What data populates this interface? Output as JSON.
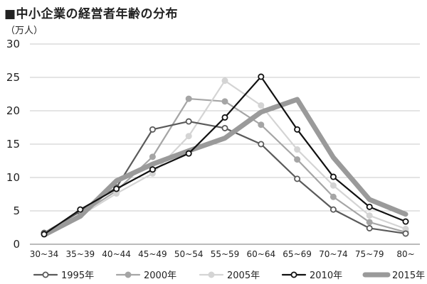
{
  "chart_data": {
    "type": "line",
    "title": "■中小企業の経営者年齢の分布",
    "ylabel": "（万人）",
    "xlabel": "",
    "ylim": [
      0,
      30
    ],
    "yticks": [
      0,
      5,
      10,
      15,
      20,
      25,
      30
    ],
    "grid": "horizontal",
    "legend_position": "bottom",
    "categories": [
      "30~34",
      "35~39",
      "40~44",
      "45~49",
      "50~54",
      "55~59",
      "60~64",
      "65~69",
      "70~74",
      "75~79",
      "80~"
    ],
    "series": [
      {
        "name": "1995年",
        "color": "#5a5a5a",
        "marker": "hollow-circle",
        "values": [
          1.7,
          4.9,
          8.5,
          17.2,
          18.4,
          17.4,
          15.0,
          9.8,
          5.2,
          2.4,
          1.6
        ]
      },
      {
        "name": "2000年",
        "color": "#a5a5a5",
        "marker": "filled-circle",
        "values": [
          1.6,
          4.5,
          8.0,
          13.1,
          21.8,
          21.4,
          17.9,
          12.7,
          7.1,
          3.3,
          1.8
        ]
      },
      {
        "name": "2005年",
        "color": "#d4d4d4",
        "marker": "filled-circle",
        "values": [
          1.5,
          4.3,
          7.6,
          10.6,
          16.2,
          24.5,
          20.8,
          14.2,
          8.8,
          4.3,
          2.3
        ]
      },
      {
        "name": "2010年",
        "color": "#111111",
        "marker": "hollow-circle",
        "values": [
          1.5,
          5.2,
          8.3,
          11.2,
          13.6,
          19.0,
          25.1,
          17.2,
          10.1,
          5.6,
          3.4
        ]
      },
      {
        "name": "2015年",
        "color": "#9a9a9a",
        "marker": "none",
        "thick": true,
        "values": [
          1.4,
          4.2,
          9.5,
          12.0,
          14.0,
          15.9,
          19.8,
          21.7,
          13.0,
          6.7,
          4.5
        ]
      }
    ]
  }
}
